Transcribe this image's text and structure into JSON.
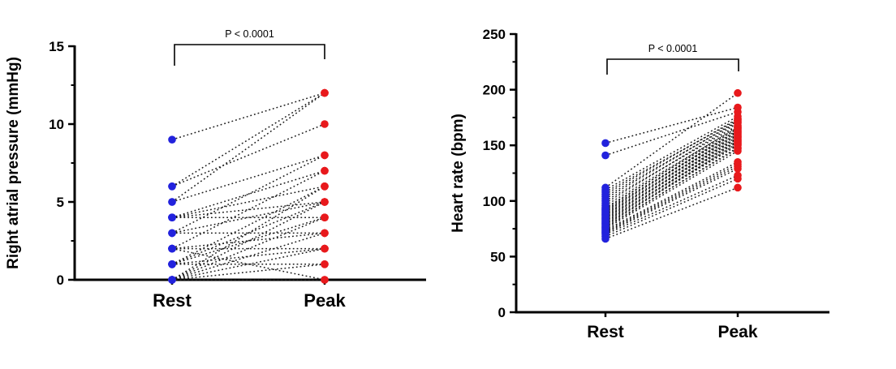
{
  "figure": {
    "background": "#ffffff",
    "text_color": "#000000",
    "axis_color": "#000000",
    "pair_line_color": "#1a1a1a",
    "rest_color": "#2222dd",
    "peak_color": "#e8191c"
  },
  "chart_data": [
    {
      "type": "scatter",
      "subtype": "paired-before-after",
      "title": "",
      "ylabel": "Right atrial pressure (mmHg)",
      "xlabel": "",
      "categories": [
        "Rest",
        "Peak"
      ],
      "ylim": [
        0,
        15
      ],
      "yticks": [
        0,
        5,
        10,
        15
      ],
      "ytick_labels": [
        "0",
        "5",
        "10",
        "15"
      ],
      "minor_ticks": [
        2.5,
        7.5,
        12.5
      ],
      "grid": false,
      "legend": false,
      "annotation": "P < 0.0001",
      "pair_format": [
        "rest",
        "peak"
      ],
      "pairs": [
        [
          9,
          12
        ],
        [
          6,
          12
        ],
        [
          5,
          12
        ],
        [
          6,
          10
        ],
        [
          5,
          8
        ],
        [
          3,
          8
        ],
        [
          4,
          7
        ],
        [
          2,
          7
        ],
        [
          4,
          6
        ],
        [
          1,
          6
        ],
        [
          0,
          6
        ],
        [
          4,
          5
        ],
        [
          3,
          5
        ],
        [
          1,
          5
        ],
        [
          0,
          5
        ],
        [
          4,
          4
        ],
        [
          1,
          4
        ],
        [
          0,
          4
        ],
        [
          3,
          3
        ],
        [
          2,
          3
        ],
        [
          0,
          3
        ],
        [
          2,
          2
        ],
        [
          1,
          2
        ],
        [
          0,
          2
        ],
        [
          1,
          1
        ],
        [
          0,
          1
        ],
        [
          2,
          0
        ],
        [
          0,
          0
        ]
      ]
    },
    {
      "type": "scatter",
      "subtype": "paired-before-after",
      "title": "",
      "ylabel": "Heart rate (bpm)",
      "xlabel": "",
      "categories": [
        "Rest",
        "Peak"
      ],
      "ylim": [
        0,
        250
      ],
      "yticks": [
        0,
        50,
        100,
        150,
        200,
        250
      ],
      "ytick_labels": [
        "0",
        "50",
        "100",
        "150",
        "200",
        "250"
      ],
      "minor_ticks": [
        25,
        75,
        125,
        175,
        225
      ],
      "grid": false,
      "legend": false,
      "annotation": "P < 0.0001",
      "pair_format": [
        "rest",
        "peak"
      ],
      "pairs": [
        [
          66,
          112
        ],
        [
          68,
          120
        ],
        [
          70,
          123
        ],
        [
          71,
          129
        ],
        [
          72,
          131
        ],
        [
          73,
          133
        ],
        [
          74,
          135
        ],
        [
          75,
          145
        ],
        [
          76,
          148
        ],
        [
          77,
          147
        ],
        [
          78,
          152
        ],
        [
          79,
          150
        ],
        [
          80,
          151
        ],
        [
          81,
          155
        ],
        [
          82,
          153
        ],
        [
          83,
          154
        ],
        [
          84,
          158
        ],
        [
          85,
          156
        ],
        [
          86,
          157
        ],
        [
          87,
          161
        ],
        [
          88,
          159
        ],
        [
          89,
          160
        ],
        [
          90,
          164
        ],
        [
          91,
          162
        ],
        [
          92,
          163
        ],
        [
          93,
          167
        ],
        [
          94,
          165
        ],
        [
          96,
          166
        ],
        [
          98,
          170
        ],
        [
          100,
          168
        ],
        [
          102,
          172
        ],
        [
          104,
          171
        ],
        [
          106,
          174
        ],
        [
          108,
          173
        ],
        [
          110,
          176
        ],
        [
          112,
          197
        ],
        [
          141,
          180
        ],
        [
          152,
          184
        ]
      ]
    }
  ]
}
